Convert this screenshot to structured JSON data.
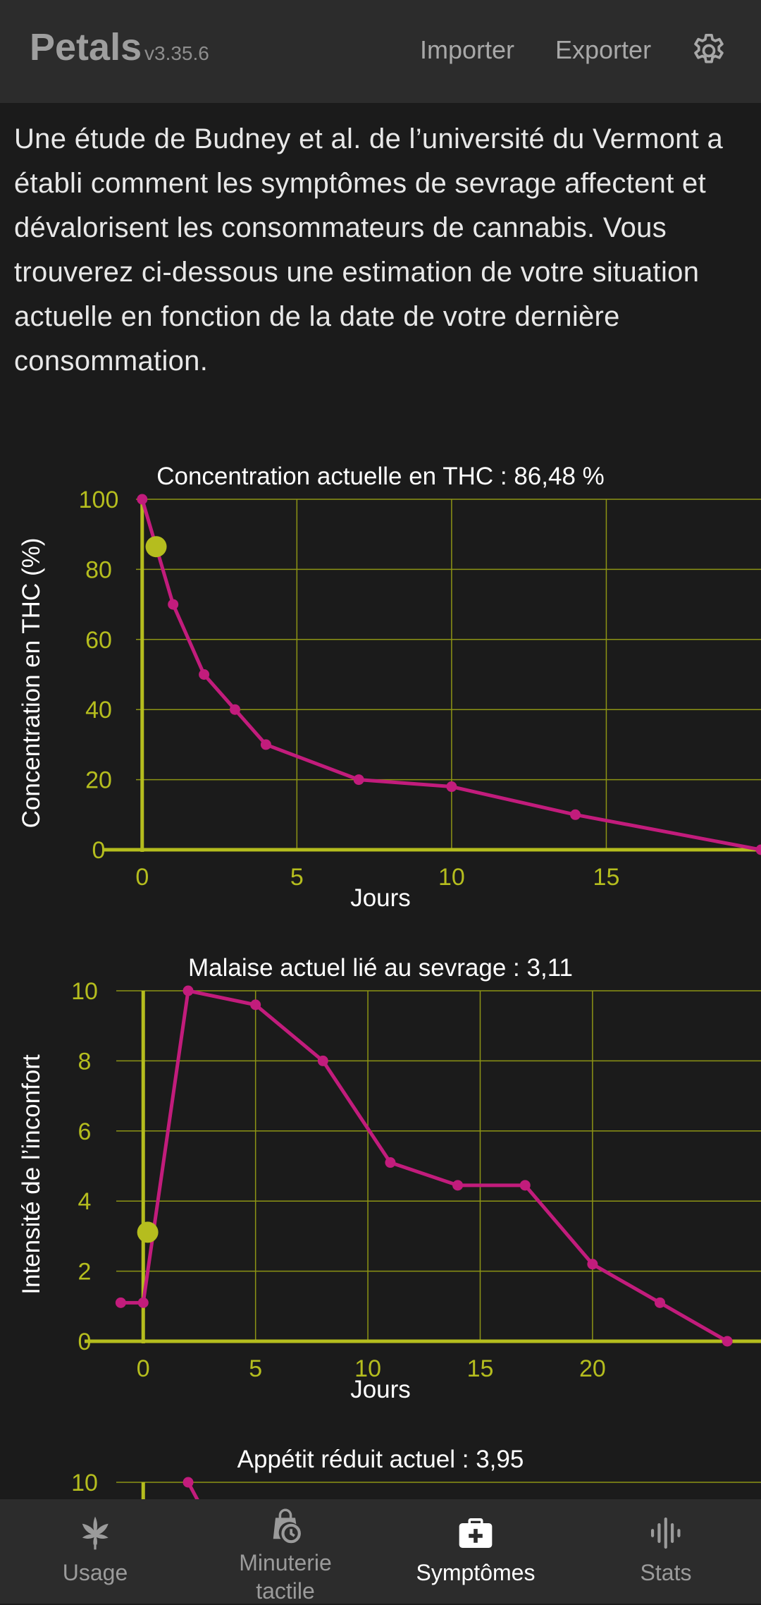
{
  "header": {
    "title": "Petals",
    "version": "v3.35.6",
    "import_label": "Importer",
    "export_label": "Exporter",
    "settings_icon": "gear-icon"
  },
  "intro_text": "Une étude de Budney et al. de l’université du Vermont a établi comment les symptômes de sevrage affectent et dévalorisent les consommateurs de cannabis. Vous trouverez ci-dessous une estimation de votre situation actuelle en fonction de la date de votre dernière consommation.",
  "colors": {
    "accent": "#b5bd1e",
    "series": "#c21c7c",
    "grid": "#8d9415"
  },
  "chart_data": [
    {
      "type": "line",
      "title": "Concentration actuelle en THC : 86,48 %",
      "xlabel": "Jours",
      "ylabel": "Concentration en THC (%)",
      "xlim": [
        -0.2,
        20
      ],
      "ylim": [
        0,
        100
      ],
      "xticks": [
        0,
        5,
        10,
        15
      ],
      "yticks": [
        0,
        20,
        40,
        60,
        80,
        100
      ],
      "grid": true,
      "x": [
        0,
        1,
        2,
        3,
        4,
        7,
        10,
        14,
        20
      ],
      "y": [
        100,
        70,
        50,
        40,
        30,
        20,
        18,
        10,
        0
      ],
      "current_point": {
        "x": 0.45,
        "y": 86.48
      }
    },
    {
      "type": "line",
      "title": "Malaise actuel lié au sevrage : 3,11",
      "xlabel": "Jours",
      "ylabel": "Intensité de l’inconfort",
      "xlim": [
        -1.2,
        27.5
      ],
      "ylim": [
        0,
        10
      ],
      "xticks": [
        0,
        5,
        10,
        15,
        20
      ],
      "yticks": [
        0,
        2,
        4,
        6,
        8,
        10
      ],
      "grid": true,
      "x": [
        -1,
        0,
        2,
        5,
        8,
        11,
        14,
        17,
        20,
        23,
        26
      ],
      "y": [
        1.1,
        1.1,
        10,
        9.6,
        8,
        5.1,
        4.45,
        4.45,
        2.2,
        1.1,
        0
      ],
      "current_point": {
        "x": 0.2,
        "y": 3.11
      }
    },
    {
      "type": "line",
      "title": "Appétit réduit actuel : 3,95",
      "xlabel": "",
      "ylabel": "",
      "xlim": [
        -1.2,
        27.5
      ],
      "ylim": [
        0,
        10
      ],
      "xticks": [],
      "yticks": [
        10
      ],
      "grid": true,
      "x": [
        2,
        3
      ],
      "y": [
        10,
        8.8
      ],
      "current_point": null
    }
  ],
  "tabs": [
    {
      "label": "Usage",
      "icon": "cannabis-leaf-icon",
      "active": false
    },
    {
      "label": "Minuterie\ntactile",
      "icon": "timer-bag-icon",
      "active": false
    },
    {
      "label": "Symptômes",
      "icon": "medical-kit-icon",
      "active": true
    },
    {
      "label": "Stats",
      "icon": "waveform-icon",
      "active": false
    }
  ]
}
